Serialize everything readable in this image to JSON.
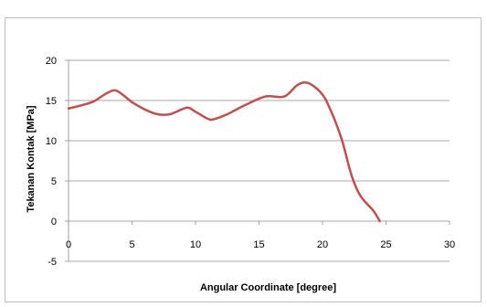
{
  "chart_data": {
    "type": "line",
    "title": "",
    "xlabel": "Angular Coordinate [degree]",
    "ylabel": "Tekanan Kontak  [MPa]",
    "xlim": [
      0,
      30
    ],
    "ylim": [
      -5,
      20
    ],
    "x_ticks": [
      "0",
      "5",
      "10",
      "15",
      "20",
      "25",
      "30"
    ],
    "y_ticks": [
      "-5",
      "0",
      "5",
      "10",
      "15",
      "20"
    ],
    "grid": "horizontal",
    "legend": "none",
    "series": [
      {
        "color": "#c0504d",
        "x": [
          0,
          1,
          2,
          3,
          3.8,
          5,
          6,
          7,
          8,
          9.3,
          10,
          11,
          11.5,
          12.5,
          14,
          15.5,
          17,
          18,
          18.8,
          19.8,
          20.5,
          21.5,
          22.3,
          23,
          24,
          24.5
        ],
        "y": [
          14,
          14.4,
          14.9,
          15.9,
          16.2,
          14.8,
          13.9,
          13.3,
          13.3,
          14.1,
          13.6,
          12.7,
          12.7,
          13.3,
          14.5,
          15.5,
          15.5,
          16.9,
          17.2,
          16.1,
          14.3,
          10.2,
          5.6,
          3.1,
          1.3,
          0
        ]
      }
    ]
  }
}
